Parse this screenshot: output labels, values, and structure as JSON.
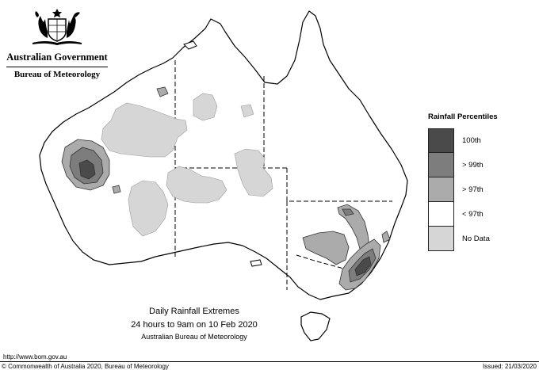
{
  "header": {
    "government": "Australian Government",
    "agency": "Bureau of Meteorology",
    "crest_icon": "coat-of-arms-icon"
  },
  "legend": {
    "title": "Rainfall Percentiles",
    "items": [
      {
        "label": "100th",
        "color": "#4a4a4a"
      },
      {
        "label": "> 99th",
        "color": "#7d7d7d"
      },
      {
        "label": "> 97th",
        "color": "#ababab"
      },
      {
        "label": "< 97th",
        "color": "#ffffff"
      },
      {
        "label": "No Data",
        "color": "#d6d6d6"
      }
    ]
  },
  "caption": {
    "line1": "Daily Rainfall Extremes",
    "line2": "24 hours to 9am on 10 Feb 2020",
    "line3": "Australian Bureau of Meteorology"
  },
  "footer": {
    "url": "http://www.bom.gov.au",
    "copyright": "© Commonwealth of Australia 2020, Bureau of Meteorology",
    "issued": "Issued: 21/03/2020"
  }
}
